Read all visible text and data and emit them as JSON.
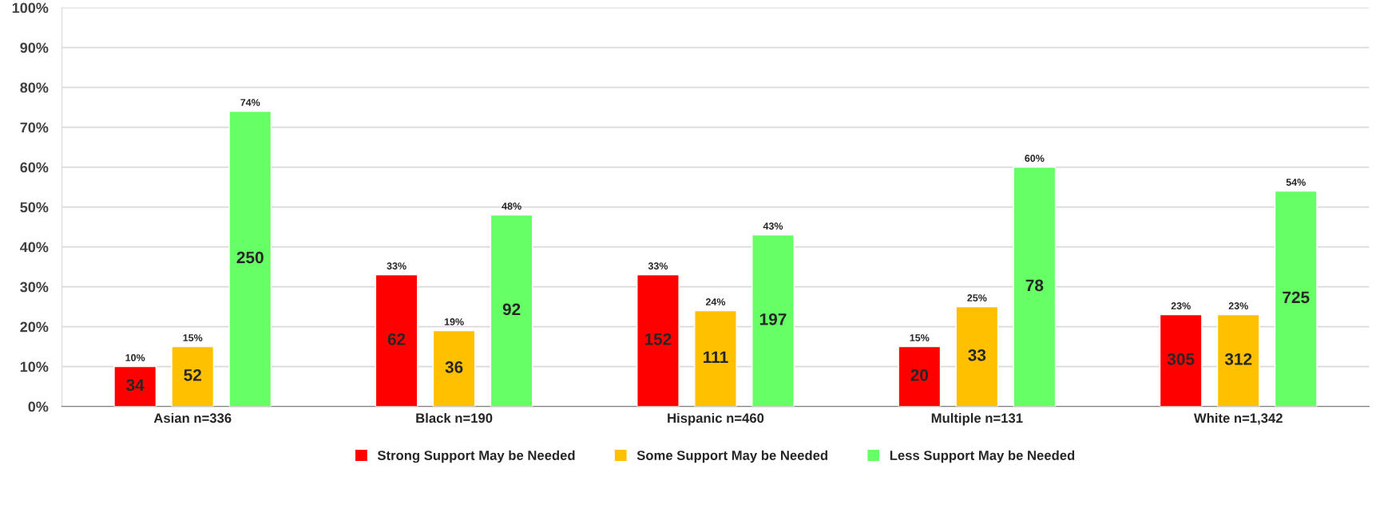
{
  "chart_data": {
    "type": "bar",
    "categories": [
      "Asian n=336",
      "Black n=190",
      "Hispanic n=460",
      "Multiple n=131",
      "White n=1,342"
    ],
    "series": [
      {
        "name": "Strong Support May be Needed",
        "color": "#ff0000",
        "values": [
          10,
          33,
          33,
          15,
          23
        ],
        "value_labels": [
          "10%",
          "33%",
          "33%",
          "15%",
          "23%"
        ]
      },
      {
        "name": "Some Support May be Needed",
        "color": "#ffc000",
        "values": [
          15,
          19,
          24,
          25,
          23
        ],
        "value_labels": [
          "15%",
          "19%",
          "24%",
          "25%",
          "23%"
        ]
      },
      {
        "name": "Less Support May be Needed",
        "color": "#66ff66",
        "values": [
          74,
          48,
          43,
          60,
          54
        ],
        "value_labels": [
          "74%",
          "48%",
          "43%",
          "60%",
          "54%"
        ]
      }
    ],
    "annotations": [
      "34",
      "62",
      "152",
      "20",
      "305",
      "52",
      "36",
      "111",
      "33",
      "312",
      "250",
      "92",
      "197",
      "78",
      "725"
    ],
    "ylim": [
      0,
      100
    ],
    "yticks": [
      {
        "value": 0,
        "label": "0%"
      },
      {
        "value": 10,
        "label": "10%"
      },
      {
        "value": 20,
        "label": "20%"
      },
      {
        "value": 30,
        "label": "30%"
      },
      {
        "value": 40,
        "label": "40%"
      },
      {
        "value": 50,
        "label": "50%"
      },
      {
        "value": 60,
        "label": "60%"
      },
      {
        "value": 70,
        "label": "70%"
      },
      {
        "value": 80,
        "label": "80%"
      },
      {
        "value": 90,
        "label": "90%"
      },
      {
        "value": 100,
        "label": "100%"
      }
    ],
    "grid": "y",
    "legend": "bottom"
  }
}
